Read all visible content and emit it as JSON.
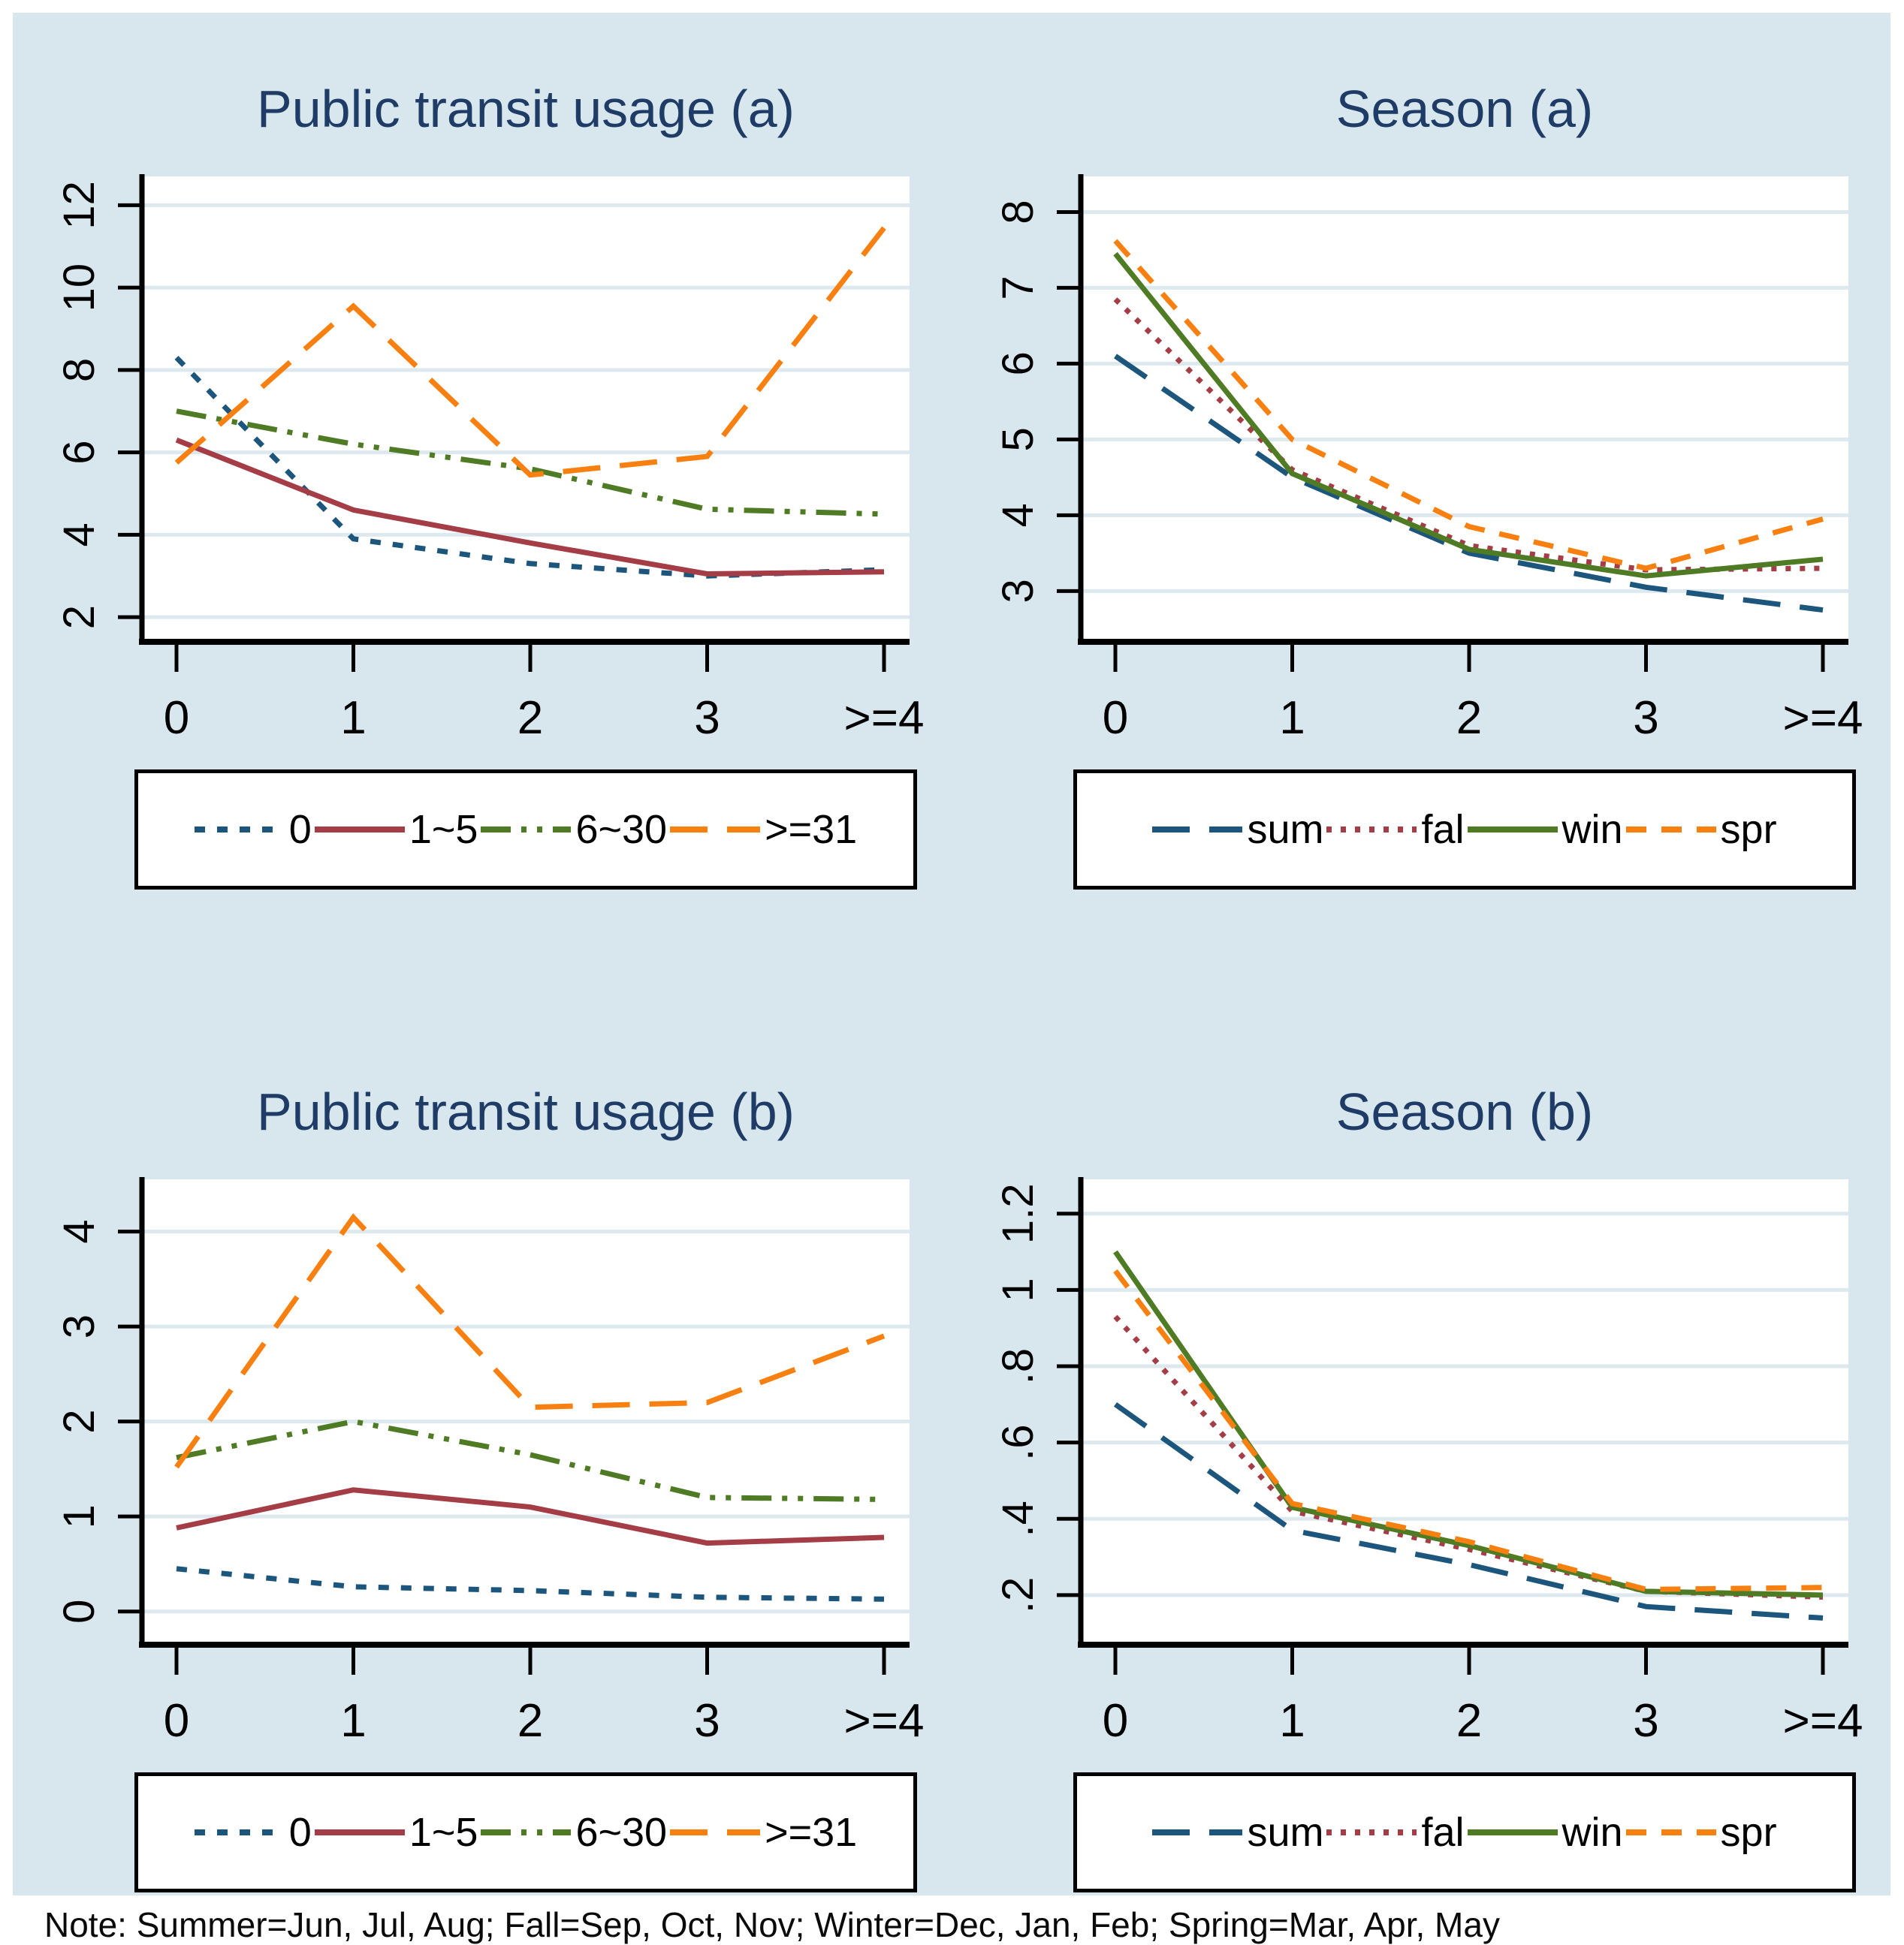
{
  "figure": {
    "background_color": "#d8e7ee",
    "title_color": "#1f3c66",
    "note": "Note: Summer=Jun, Jul, Aug; Fall=Sep, Oct, Nov; Winter=Dec, Jan, Feb; Spring=Mar, Apr, May",
    "palette": {
      "navy": "#1d567c",
      "maroon": "#a53d47",
      "green": "#4e7b24",
      "orange": "#f88010",
      "axis": "#000000",
      "grid": "#dde9ee",
      "plot_background": "#ffffff"
    }
  },
  "chart_data": [
    {
      "id": "public-transit-usage-a",
      "type": "line",
      "title": "Public transit usage (a)",
      "xlabel": "",
      "ylabel": "",
      "grid": true,
      "legend_position": "bottom",
      "categories": [
        "0",
        "1",
        "2",
        "3",
        ">=4"
      ],
      "ylim": [
        1.4,
        12.7
      ],
      "yticks": [
        2,
        4,
        6,
        8,
        10,
        12
      ],
      "ytick_labels": [
        "2",
        "4",
        "6",
        "8",
        "10",
        "12"
      ],
      "series": [
        {
          "name": "0",
          "color": "navy",
          "dash": "shortdash",
          "values": [
            8.3,
            3.9,
            3.3,
            3.0,
            3.15
          ]
        },
        {
          "name": "1~5",
          "color": "maroon",
          "dash": "solid",
          "values": [
            6.3,
            4.6,
            3.8,
            3.05,
            3.1
          ]
        },
        {
          "name": "6~30",
          "color": "green",
          "dash": "dashdotdot",
          "values": [
            7.0,
            6.2,
            5.6,
            4.62,
            4.5
          ]
        },
        {
          "name": ">=31",
          "color": "orange",
          "dash": "longdash",
          "values": [
            5.75,
            9.55,
            5.45,
            5.9,
            11.45
          ]
        }
      ]
    },
    {
      "id": "season-a",
      "type": "line",
      "title": "Season (a)",
      "xlabel": "",
      "ylabel": "",
      "grid": true,
      "legend_position": "bottom",
      "categories": [
        "0",
        "1",
        "2",
        "3",
        ">=4"
      ],
      "ylim": [
        2.33,
        8.47
      ],
      "yticks": [
        3,
        4,
        5,
        6,
        7,
        8
      ],
      "ytick_labels": [
        "3",
        "4",
        "5",
        "6",
        "7",
        "8"
      ],
      "series": [
        {
          "name": "sum",
          "color": "navy",
          "dash": "longdash",
          "values": [
            6.1,
            4.5,
            3.5,
            3.05,
            2.75
          ]
        },
        {
          "name": "fal",
          "color": "maroon",
          "dash": "dot",
          "values": [
            6.85,
            4.6,
            3.6,
            3.28,
            3.3
          ]
        },
        {
          "name": "win",
          "color": "green",
          "dash": "solid",
          "values": [
            7.45,
            4.55,
            3.55,
            3.2,
            3.42
          ]
        },
        {
          "name": "spr",
          "color": "orange",
          "dash": "dash",
          "values": [
            7.62,
            5.0,
            3.85,
            3.3,
            3.95
          ]
        }
      ]
    },
    {
      "id": "public-transit-usage-b",
      "type": "line",
      "title": "Public transit usage (b)",
      "xlabel": "",
      "ylabel": "",
      "grid": true,
      "legend_position": "bottom",
      "categories": [
        "0",
        "1",
        "2",
        "3",
        ">=4"
      ],
      "ylim": [
        -0.35,
        4.55
      ],
      "yticks": [
        0,
        1,
        2,
        3,
        4
      ],
      "ytick_labels": [
        "0",
        "1",
        "2",
        "3",
        "4"
      ],
      "series": [
        {
          "name": "0",
          "color": "navy",
          "dash": "shortdash",
          "values": [
            0.45,
            0.26,
            0.22,
            0.15,
            0.13
          ]
        },
        {
          "name": "1~5",
          "color": "maroon",
          "dash": "solid",
          "values": [
            0.88,
            1.28,
            1.1,
            0.72,
            0.78
          ]
        },
        {
          "name": "6~30",
          "color": "green",
          "dash": "dashdotdot",
          "values": [
            1.62,
            2.0,
            1.65,
            1.2,
            1.18
          ]
        },
        {
          "name": ">=31",
          "color": "orange",
          "dash": "longdash",
          "values": [
            1.52,
            4.15,
            2.15,
            2.2,
            2.9
          ]
        }
      ]
    },
    {
      "id": "season-b",
      "type": "line",
      "title": "Season (b)",
      "xlabel": "",
      "ylabel": "",
      "grid": true,
      "legend_position": "bottom",
      "categories": [
        "0",
        "1",
        "2",
        "3",
        ">=4"
      ],
      "ylim": [
        0.07,
        1.29
      ],
      "yticks": [
        0.2,
        0.4,
        0.6,
        0.8,
        1,
        1.2
      ],
      "ytick_labels": [
        ".2",
        ".4",
        ".6",
        ".8",
        "1",
        "1.2"
      ],
      "series": [
        {
          "name": "sum",
          "color": "navy",
          "dash": "longdash",
          "values": [
            0.7,
            0.37,
            0.28,
            0.17,
            0.14
          ]
        },
        {
          "name": "fal",
          "color": "maroon",
          "dash": "dot",
          "values": [
            0.93,
            0.42,
            0.32,
            0.21,
            0.195
          ]
        },
        {
          "name": "win",
          "color": "green",
          "dash": "solid",
          "values": [
            1.1,
            0.43,
            0.33,
            0.21,
            0.2
          ]
        },
        {
          "name": "spr",
          "color": "orange",
          "dash": "dash",
          "values": [
            1.05,
            0.44,
            0.34,
            0.215,
            0.22
          ]
        }
      ]
    }
  ]
}
